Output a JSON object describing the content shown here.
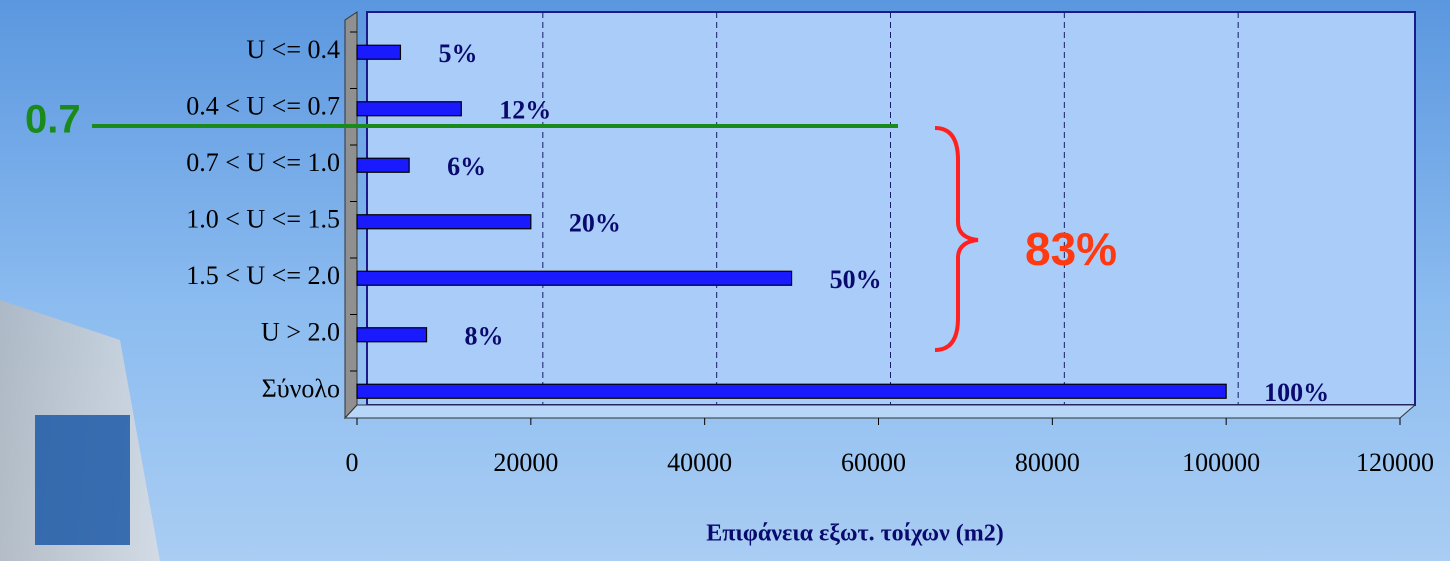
{
  "chart_data": {
    "type": "bar",
    "orientation": "horizontal",
    "categories": [
      "U <= 0.4",
      "0.4 < U <= 0.7",
      "0.7 < U <= 1.0",
      "1.0 < U <= 1.5",
      "1.5 < U <= 2.0",
      "U > 2.0",
      "Σύνολο"
    ],
    "values": [
      5000,
      12000,
      6000,
      20000,
      50000,
      8000,
      100000
    ],
    "bar_labels": [
      "5%",
      "12%",
      "6%",
      "20%",
      "50%",
      "8%",
      "100%"
    ],
    "color": "#1a1aff",
    "xlim": [
      0,
      120000
    ],
    "xticks": [
      0,
      20000,
      40000,
      60000,
      80000,
      100000,
      120000
    ],
    "grid": true,
    "xlabel": "Επιφάνεια εξωτ. τοίχων (m2)",
    "annotations": {
      "threshold": "0.7",
      "group_total": "83%"
    }
  }
}
